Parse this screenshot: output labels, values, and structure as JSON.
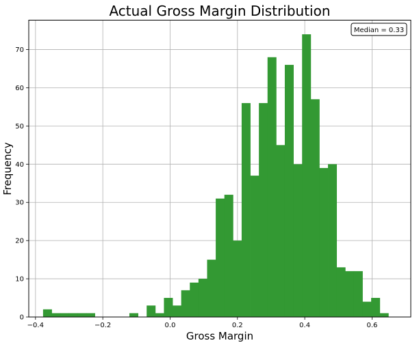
{
  "chart_data": {
    "type": "bar",
    "title": "Actual Gross Margin Distribution",
    "xlabel": "Gross Margin",
    "ylabel": "Frequency",
    "xlim": [
      -0.42,
      0.715
    ],
    "ylim": [
      0,
      77.7
    ],
    "grid": true,
    "bar_color": "#339933",
    "xticks": [
      -0.4,
      -0.2,
      0.0,
      0.2,
      0.4,
      0.6
    ],
    "xtick_labels": [
      "−0.4",
      "−0.2",
      "0.0",
      "0.2",
      "0.4",
      "0.6"
    ],
    "yticks": [
      0,
      10,
      20,
      30,
      40,
      50,
      60,
      70
    ],
    "ytick_labels": [
      "0",
      "10",
      "20",
      "30",
      "40",
      "50",
      "60",
      "70"
    ],
    "bin_width": 0.02565,
    "bin_edges_start": -0.3775,
    "values": [
      2,
      1,
      1,
      1,
      1,
      1,
      0,
      0,
      0,
      0,
      1,
      0,
      3,
      1,
      5,
      3,
      7,
      9,
      10,
      15,
      31,
      32,
      20,
      56,
      37,
      56,
      68,
      45,
      66,
      40,
      74,
      57,
      39,
      40,
      13,
      12,
      12,
      4,
      5,
      1
    ],
    "annotation": {
      "text": "Median = 0.33",
      "placement": "top-right"
    }
  }
}
